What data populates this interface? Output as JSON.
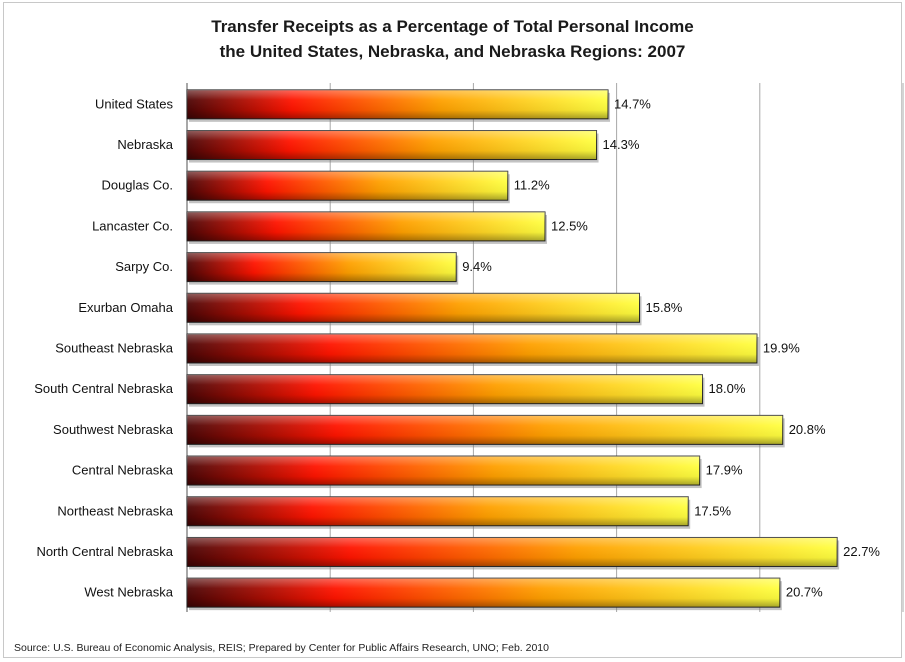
{
  "chart_data": {
    "type": "bar",
    "orientation": "horizontal",
    "title_lines": [
      "Transfer Receipts as a Percentage of Total Personal Income",
      "the United States, Nebraska, and Nebraska Regions: 2007"
    ],
    "categories": [
      "United States",
      "Nebraska",
      "Douglas Co.",
      "Lancaster Co.",
      "Sarpy Co.",
      "Exurban Omaha",
      "Southeast Nebraska",
      "South Central Nebraska",
      "Southwest Nebraska",
      "Central Nebraska",
      "Northeast Nebraska",
      "North Central Nebraska",
      "West Nebraska"
    ],
    "values": [
      14.7,
      14.3,
      11.2,
      12.5,
      9.4,
      15.8,
      19.9,
      18.0,
      20.8,
      17.9,
      17.5,
      22.7,
      20.7
    ],
    "value_labels": [
      "14.7%",
      "14.3%",
      "11.2%",
      "12.5%",
      "9.4%",
      "15.8%",
      "19.9%",
      "18.0%",
      "20.8%",
      "17.9%",
      "17.5%",
      "22.7%",
      "20.7%"
    ],
    "xlim": [
      0,
      25
    ],
    "gridline_step": 5,
    "grid": true,
    "legend": "none",
    "bar_gradient": [
      "#5a0a0a",
      "#ff1a00",
      "#ff9900",
      "#ffff33"
    ],
    "source": "Source: U.S. Bureau of Economic Analysis, REIS; Prepared by Center for Public Affairs Research, UNO; Feb. 2010"
  }
}
